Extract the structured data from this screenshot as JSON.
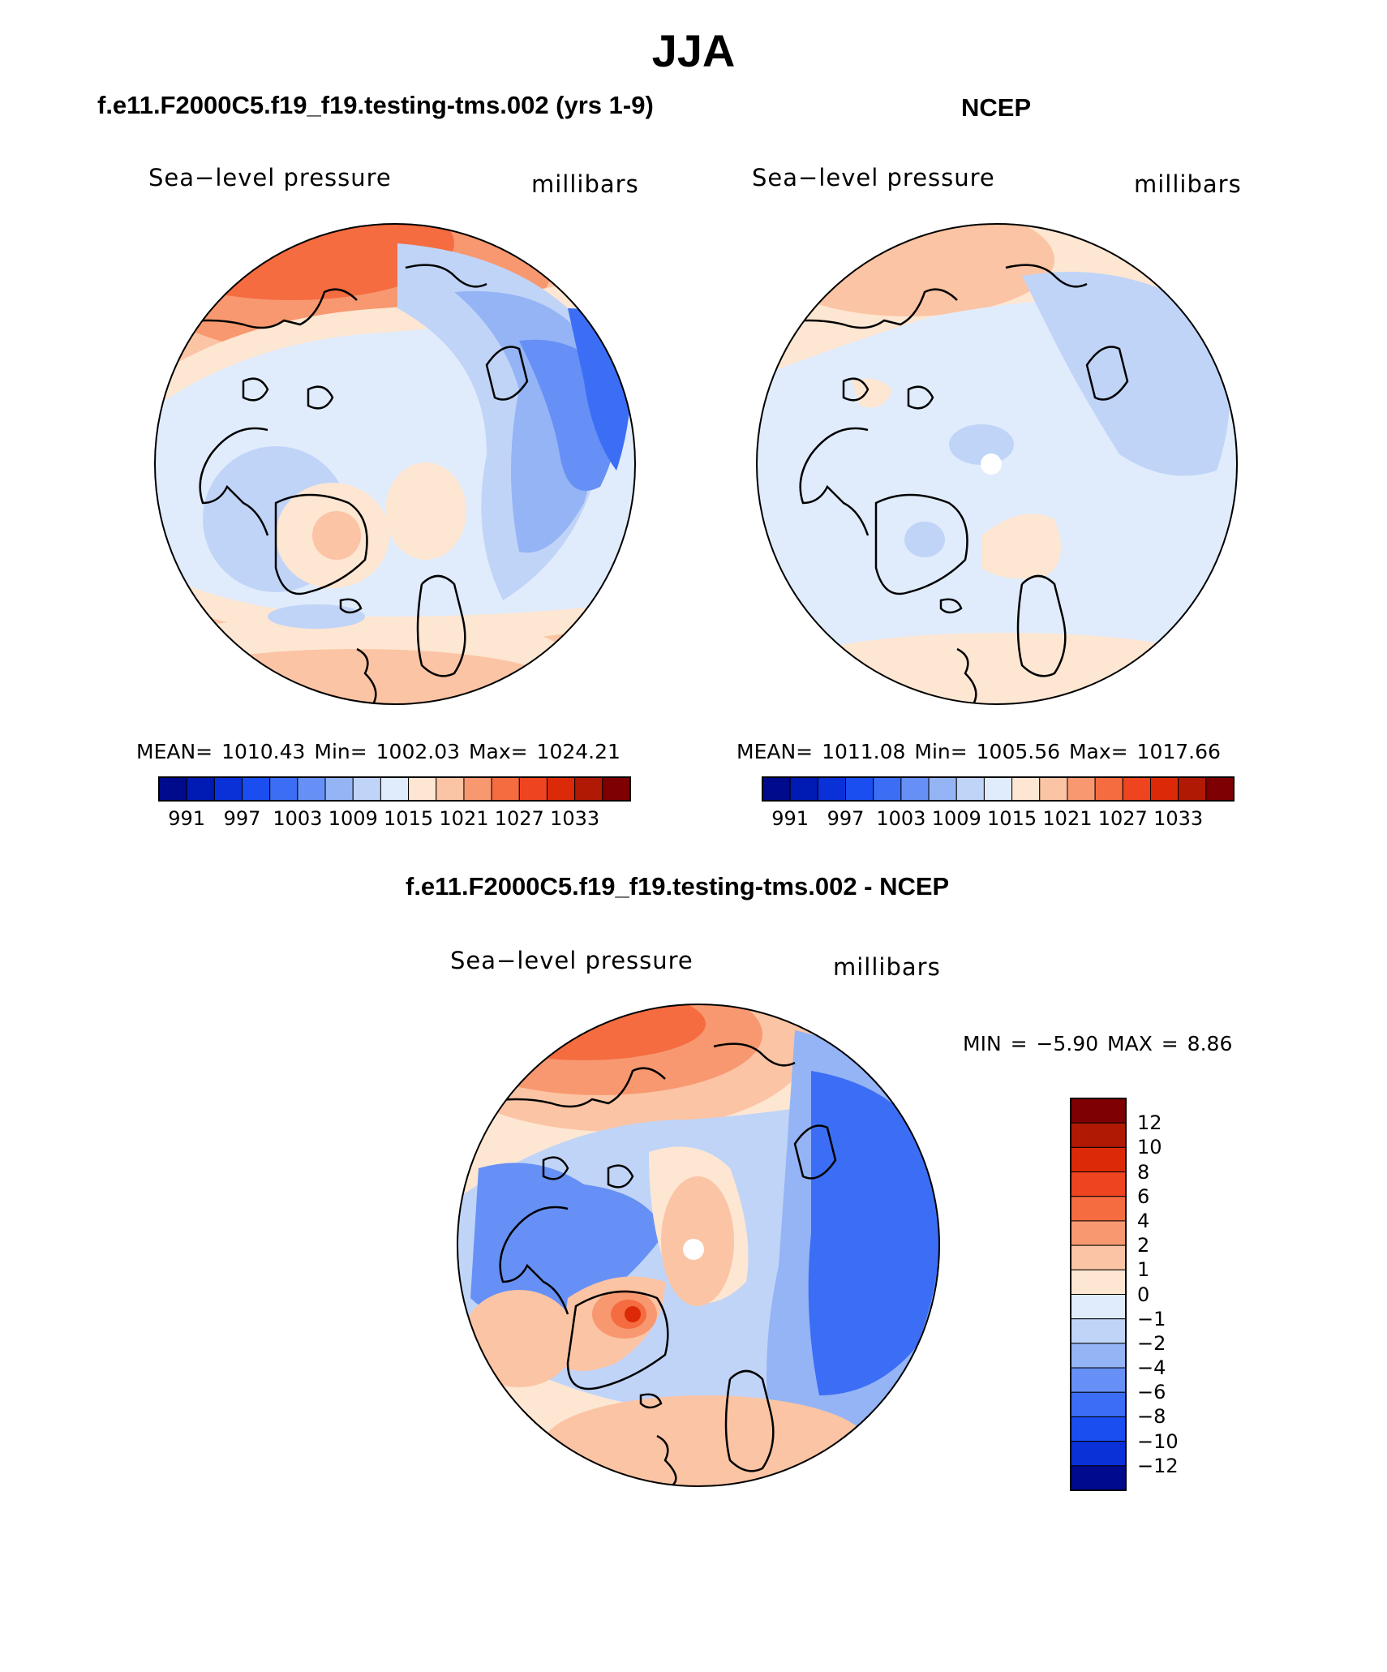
{
  "title": "JJA",
  "panels": [
    {
      "title": "f.e11.F2000C5.f19_f19.testing-tms.002 (yrs 1-9)",
      "variable": "Sea−level pressure",
      "units": "millibars",
      "stats": "MEAN= 1010.43   Min= 1002.03   Max= 1024.21"
    },
    {
      "title": "NCEP",
      "variable": "Sea−level pressure",
      "units": "millibars",
      "stats": "MEAN= 1011.08   Min= 1005.56   Max= 1017.66"
    },
    {
      "title": "f.e11.F2000C5.f19_f19.testing-tms.002 - NCEP",
      "variable": "Sea−level pressure",
      "units": "millibars",
      "stats": "MIN =   −5.90  MAX =    8.86"
    }
  ],
  "abs_colorbar": {
    "labels": [
      "991",
      "997",
      "1003",
      "1009",
      "1015",
      "1021",
      "1027",
      "1033"
    ],
    "colors": [
      "#000a8c",
      "#001ab4",
      "#0a30d8",
      "#1a4ef0",
      "#3c6ef5",
      "#6690f5",
      "#94b4f5",
      "#c0d4f8",
      "#e0ecfc",
      "#fde6d2",
      "#fbc4a4",
      "#f89870",
      "#f46c40",
      "#ee4420",
      "#dc2a08",
      "#b01a05",
      "#7e0003"
    ]
  },
  "diff_colorbar": {
    "labels": [
      "12",
      "10",
      "8",
      "6",
      "4",
      "2",
      "1",
      "0",
      "−1",
      "−2",
      "−4",
      "−6",
      "−8",
      "−10",
      "−12"
    ],
    "colors": [
      "#7e0003",
      "#b01a05",
      "#dc2a08",
      "#ee4420",
      "#f46c40",
      "#f89870",
      "#fbc4a4",
      "#fde6d2",
      "#e0ecfc",
      "#c0d4f8",
      "#94b4f5",
      "#6690f5",
      "#3c6ef5",
      "#1a4ef0",
      "#0a30d8",
      "#000a8c"
    ]
  },
  "chart_data": [
    {
      "type": "map",
      "title": "f.e11.F2000C5.f19_f19.testing-tms.002 (yrs 1-9)",
      "field": "Sea-level pressure",
      "units": "millibars",
      "mean": 1010.43,
      "min": 1002.03,
      "max": 1024.21,
      "contour_levels": [
        991,
        997,
        1003,
        1009,
        1015,
        1021,
        1027,
        1033
      ]
    },
    {
      "type": "map",
      "title": "NCEP",
      "field": "Sea-level pressure",
      "units": "millibars",
      "mean": 1011.08,
      "min": 1005.56,
      "max": 1017.66,
      "contour_levels": [
        991,
        997,
        1003,
        1009,
        1015,
        1021,
        1027,
        1033
      ]
    },
    {
      "type": "map",
      "title": "f.e11.F2000C5.f19_f19.testing-tms.002 - NCEP",
      "field": "Sea-level pressure",
      "units": "millibars",
      "min": -5.9,
      "max": 8.86,
      "contour_levels": [
        -12,
        -10,
        -8,
        -6,
        -4,
        -2,
        -1,
        0,
        1,
        2,
        4,
        6,
        8,
        10,
        12
      ]
    }
  ]
}
